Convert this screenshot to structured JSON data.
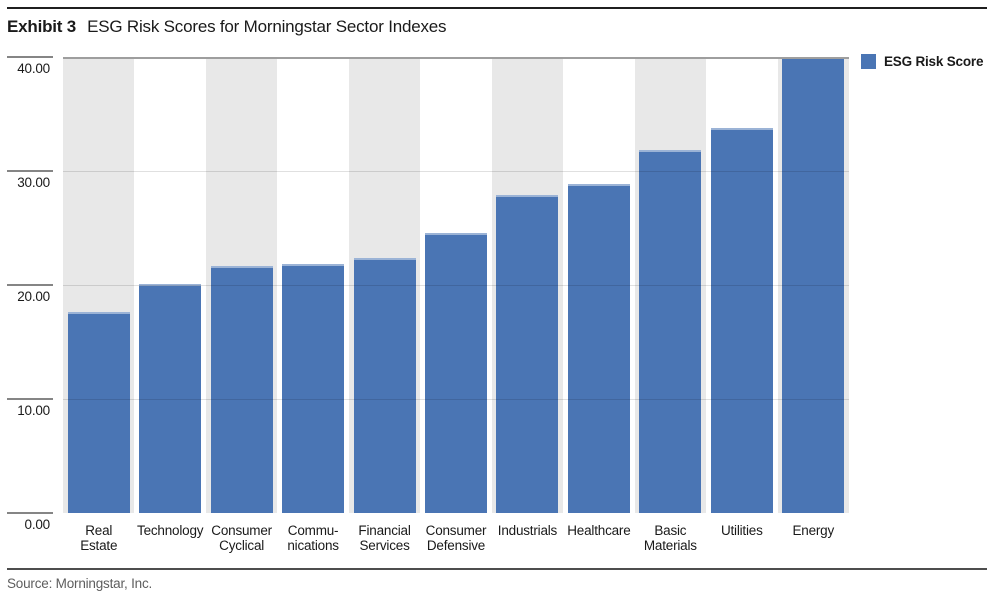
{
  "page": {
    "exhibit_label": "Exhibit 3",
    "title": "ESG Risk Scores for Morningstar Sector Indexes",
    "source": "Source: Morningstar, Inc."
  },
  "legend": {
    "label": "ESG Risk Score"
  },
  "colors": {
    "bar": "#4a75b4",
    "stripe": "#e8e8e8",
    "plot_top_border": "#9e9e9e",
    "gridline": "rgba(0,0,0,0.12)",
    "rule_dark": "#1f1f1f",
    "source_text": "#5e5e5e"
  },
  "chart_data": {
    "type": "bar",
    "title": "ESG Risk Scores for Morningstar Sector Indexes",
    "series_name": "ESG Risk Score",
    "categories": [
      "Real Estate",
      "Technology",
      "Consumer Cyclical",
      "Communications",
      "Financial Services",
      "Consumer Defensive",
      "Industrials",
      "Healthcare",
      "Basic Materials",
      "Utilities",
      "Energy"
    ],
    "category_label_lines": [
      [
        "Real",
        "Estate"
      ],
      [
        "Technology"
      ],
      [
        "Consumer",
        "Cyclical"
      ],
      [
        "Commu-",
        "nications"
      ],
      [
        "Financial",
        "Services"
      ],
      [
        "Consumer",
        "Defensive"
      ],
      [
        "Industrials"
      ],
      [
        "Healthcare"
      ],
      [
        "Basic",
        "Materials"
      ],
      [
        "Utilities"
      ],
      [
        "Energy"
      ]
    ],
    "values": [
      17.6,
      20.1,
      21.7,
      21.8,
      22.4,
      24.6,
      27.9,
      28.9,
      31.8,
      33.8,
      41.0
    ],
    "ylim": [
      0,
      40
    ],
    "y_ticks": [
      {
        "label": "40.00",
        "value": 40
      },
      {
        "label": "30.00",
        "value": 30
      },
      {
        "label": "20.00",
        "value": 20
      },
      {
        "label": "10.00",
        "value": 10
      },
      {
        "label": "0.00",
        "value": 0
      }
    ],
    "grid": "horizontal",
    "legend_position": "top-right",
    "background_stripes": "alternating-columns"
  }
}
